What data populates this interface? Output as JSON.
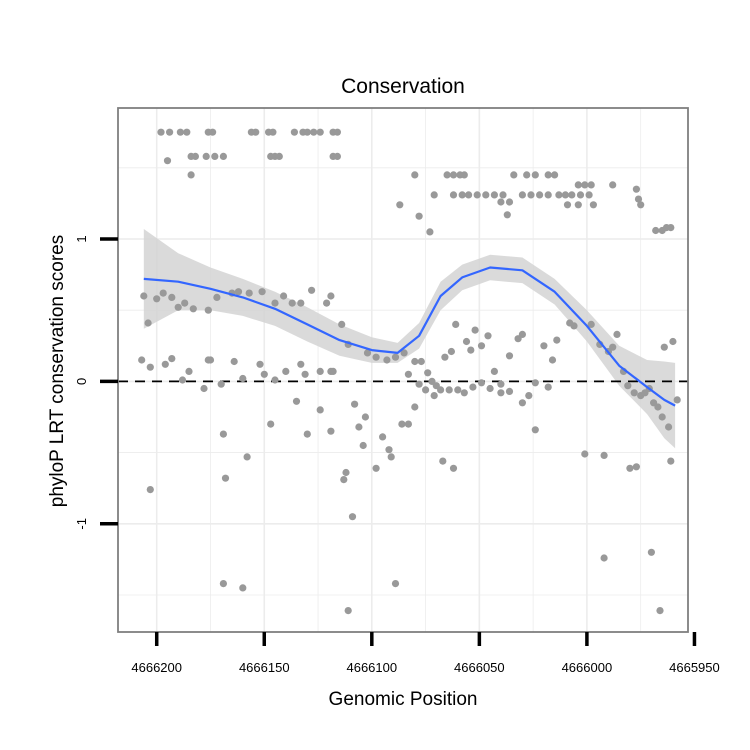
{
  "chart_data": {
    "type": "scatter",
    "title": "Conservation",
    "xlabel": "Genomic Position",
    "ylabel": "phyloP LRT conservation scores",
    "xlim": [
      4666218,
      4665953
    ],
    "ylim": [
      -1.76,
      1.92
    ],
    "x_ticks": [
      {
        "value": 4666200,
        "label": "4666200"
      },
      {
        "value": 4666150,
        "label": "4666150"
      },
      {
        "value": 4666100,
        "label": "4666100"
      },
      {
        "value": 4666050,
        "label": "4666050"
      },
      {
        "value": 4666000,
        "label": "4666000"
      },
      {
        "value": 4665950,
        "label": "4665950"
      }
    ],
    "y_ticks": [
      {
        "value": -1,
        "label": "-1"
      },
      {
        "value": 0,
        "label": "0"
      },
      {
        "value": 1,
        "label": "1"
      }
    ],
    "reference_line": {
      "y": 0,
      "style": "dashed"
    },
    "grid": true,
    "colors": {
      "points": "#999999",
      "smooth": "#3366ff",
      "band": "#d3d3d3",
      "grid": "#ececec",
      "border": "#7f7f7f"
    },
    "smooth": {
      "x": [
        4666206,
        4666190,
        4666175,
        4666160,
        4666145,
        4666130,
        4666115,
        4666100,
        4666088,
        4666078,
        4666068,
        4666058,
        4666045,
        4666030,
        4666015,
        4666000,
        4665985,
        4665972,
        4665964,
        4665959
      ],
      "y": [
        0.72,
        0.7,
        0.65,
        0.59,
        0.51,
        0.4,
        0.29,
        0.22,
        0.2,
        0.32,
        0.6,
        0.73,
        0.8,
        0.78,
        0.63,
        0.39,
        0.11,
        -0.04,
        -0.13,
        -0.17
      ],
      "lower": [
        0.37,
        0.5,
        0.5,
        0.46,
        0.39,
        0.28,
        0.18,
        0.13,
        0.13,
        0.23,
        0.5,
        0.64,
        0.71,
        0.69,
        0.54,
        0.28,
        -0.03,
        -0.23,
        -0.4,
        -0.47
      ],
      "upper": [
        1.07,
        0.9,
        0.8,
        0.72,
        0.63,
        0.52,
        0.4,
        0.31,
        0.27,
        0.41,
        0.7,
        0.82,
        0.89,
        0.87,
        0.72,
        0.5,
        0.25,
        0.15,
        0.14,
        0.13
      ]
    },
    "points": [
      [
        4666198,
        1.75
      ],
      [
        4666194,
        1.75
      ],
      [
        4666189,
        1.75
      ],
      [
        4666186,
        1.75
      ],
      [
        4666176,
        1.75
      ],
      [
        4666174,
        1.75
      ],
      [
        4666156,
        1.75
      ],
      [
        4666154,
        1.75
      ],
      [
        4666148,
        1.75
      ],
      [
        4666146,
        1.75
      ],
      [
        4666136,
        1.75
      ],
      [
        4666132,
        1.75
      ],
      [
        4666130,
        1.75
      ],
      [
        4666127,
        1.75
      ],
      [
        4666124,
        1.75
      ],
      [
        4666118,
        1.75
      ],
      [
        4666116,
        1.75
      ],
      [
        4666195,
        1.55
      ],
      [
        4666184,
        1.58
      ],
      [
        4666182,
        1.58
      ],
      [
        4666177,
        1.58
      ],
      [
        4666173,
        1.58
      ],
      [
        4666169,
        1.58
      ],
      [
        4666147,
        1.58
      ],
      [
        4666145,
        1.58
      ],
      [
        4666143,
        1.58
      ],
      [
        4666118,
        1.58
      ],
      [
        4666116,
        1.58
      ],
      [
        4666184,
        1.45
      ],
      [
        4666080,
        1.45
      ],
      [
        4666065,
        1.45
      ],
      [
        4666062,
        1.45
      ],
      [
        4666059,
        1.45
      ],
      [
        4666057,
        1.45
      ],
      [
        4666034,
        1.45
      ],
      [
        4666028,
        1.45
      ],
      [
        4666024,
        1.45
      ],
      [
        4666018,
        1.45
      ],
      [
        4666015,
        1.45
      ],
      [
        4666004,
        1.38
      ],
      [
        4666001,
        1.38
      ],
      [
        4665998,
        1.38
      ],
      [
        4665988,
        1.38
      ],
      [
        4665977,
        1.35
      ],
      [
        4666071,
        1.31
      ],
      [
        4666062,
        1.31
      ],
      [
        4666058,
        1.31
      ],
      [
        4666055,
        1.31
      ],
      [
        4666051,
        1.31
      ],
      [
        4666047,
        1.31
      ],
      [
        4666043,
        1.31
      ],
      [
        4666039,
        1.31
      ],
      [
        4666030,
        1.31
      ],
      [
        4666026,
        1.31
      ],
      [
        4666022,
        1.31
      ],
      [
        4666018,
        1.31
      ],
      [
        4666013,
        1.31
      ],
      [
        4666010,
        1.31
      ],
      [
        4666007,
        1.31
      ],
      [
        4666003,
        1.31
      ],
      [
        4665999,
        1.31
      ],
      [
        4665976,
        1.28
      ],
      [
        4666040,
        1.26
      ],
      [
        4666036,
        1.26
      ],
      [
        4666009,
        1.24
      ],
      [
        4666004,
        1.24
      ],
      [
        4665997,
        1.24
      ],
      [
        4665975,
        1.24
      ],
      [
        4666037,
        1.17
      ],
      [
        4666087,
        1.24
      ],
      [
        4666078,
        1.16
      ],
      [
        4666073,
        1.05
      ],
      [
        4665968,
        1.06
      ],
      [
        4665965,
        1.06
      ],
      [
        4665963,
        1.08
      ],
      [
        4665961,
        1.08
      ],
      [
        4666206,
        0.6
      ],
      [
        4666204,
        0.41
      ],
      [
        4666200,
        0.58
      ],
      [
        4666197,
        0.62
      ],
      [
        4666193,
        0.59
      ],
      [
        4666190,
        0.52
      ],
      [
        4666187,
        0.55
      ],
      [
        4666183,
        0.51
      ],
      [
        4666176,
        0.5
      ],
      [
        4666172,
        0.59
      ],
      [
        4666165,
        0.62
      ],
      [
        4666162,
        0.63
      ],
      [
        4666157,
        0.62
      ],
      [
        4666151,
        0.63
      ],
      [
        4666145,
        0.55
      ],
      [
        4666141,
        0.6
      ],
      [
        4666137,
        0.55
      ],
      [
        4666133,
        0.55
      ],
      [
        4666128,
        0.64
      ],
      [
        4666121,
        0.55
      ],
      [
        4666119,
        0.6
      ],
      [
        4666114,
        0.4
      ],
      [
        4666111,
        0.26
      ],
      [
        4666207,
        0.15
      ],
      [
        4666203,
        0.1
      ],
      [
        4666196,
        0.12
      ],
      [
        4666193,
        0.16
      ],
      [
        4666188,
        0.01
      ],
      [
        4666185,
        0.07
      ],
      [
        4666176,
        0.15
      ],
      [
        4666175,
        0.15
      ],
      [
        4666170,
        -0.02
      ],
      [
        4666164,
        0.14
      ],
      [
        4666160,
        0.02
      ],
      [
        4666152,
        0.12
      ],
      [
        4666150,
        0.05
      ],
      [
        4666145,
        0.01
      ],
      [
        4666140,
        0.07
      ],
      [
        4666133,
        0.12
      ],
      [
        4666131,
        0.05
      ],
      [
        4666124,
        0.07
      ],
      [
        4666119,
        0.07
      ],
      [
        4666118,
        0.07
      ],
      [
        4666203,
        -0.76
      ],
      [
        4666178,
        -0.05
      ],
      [
        4666169,
        -0.37
      ],
      [
        4666168,
        -0.68
      ],
      [
        4666158,
        -0.53
      ],
      [
        4666147,
        -0.3
      ],
      [
        4666135,
        -0.14
      ],
      [
        4666130,
        -0.37
      ],
      [
        4666124,
        -0.2
      ],
      [
        4666119,
        -0.35
      ],
      [
        4666113,
        -0.69
      ],
      [
        4666112,
        -0.64
      ],
      [
        4666104,
        -0.45
      ],
      [
        4666098,
        -0.61
      ],
      [
        4666108,
        -0.16
      ],
      [
        4666109,
        -0.95
      ],
      [
        4666103,
        -0.25
      ],
      [
        4666106,
        -0.32
      ],
      [
        4666095,
        -0.39
      ],
      [
        4666092,
        -0.48
      ],
      [
        4666091,
        -0.53
      ],
      [
        4666086,
        -0.3
      ],
      [
        4666083,
        -0.3
      ],
      [
        4666080,
        -0.18
      ],
      [
        4666169,
        -1.42
      ],
      [
        4666160,
        -1.45
      ],
      [
        4666111,
        -1.61
      ],
      [
        4666089,
        -1.42
      ],
      [
        4665992,
        -1.24
      ],
      [
        4665970,
        -1.2
      ],
      [
        4665966,
        -1.61
      ],
      [
        4666102,
        0.2
      ],
      [
        4666098,
        0.17
      ],
      [
        4666093,
        0.15
      ],
      [
        4666089,
        0.17
      ],
      [
        4666085,
        0.2
      ],
      [
        4666083,
        0.05
      ],
      [
        4666080,
        0.14
      ],
      [
        4666077,
        0.14
      ],
      [
        4666074,
        0.06
      ],
      [
        4666072,
        0.0
      ],
      [
        4666070,
        -0.03
      ],
      [
        4666066,
        0.17
      ],
      [
        4666063,
        0.21
      ],
      [
        4666061,
        0.4
      ],
      [
        4666056,
        0.28
      ],
      [
        4666054,
        0.22
      ],
      [
        4666052,
        0.36
      ],
      [
        4666049,
        0.25
      ],
      [
        4666046,
        0.32
      ],
      [
        4666043,
        0.07
      ],
      [
        4666040,
        -0.02
      ],
      [
        4666036,
        0.18
      ],
      [
        4666032,
        0.3
      ],
      [
        4666030,
        0.33
      ],
      [
        4666027,
        -0.1
      ],
      [
        4666024,
        -0.34
      ],
      [
        4666020,
        0.25
      ],
      [
        4666016,
        0.15
      ],
      [
        4666078,
        -0.02
      ],
      [
        4666075,
        -0.06
      ],
      [
        4666071,
        -0.1
      ],
      [
        4666068,
        -0.06
      ],
      [
        4666064,
        -0.06
      ],
      [
        4666060,
        -0.06
      ],
      [
        4666057,
        -0.08
      ],
      [
        4666053,
        -0.04
      ],
      [
        4666049,
        -0.01
      ],
      [
        4666045,
        -0.05
      ],
      [
        4666040,
        -0.08
      ],
      [
        4666036,
        -0.07
      ],
      [
        4666030,
        -0.15
      ],
      [
        4666024,
        -0.01
      ],
      [
        4666018,
        -0.04
      ],
      [
        4666014,
        0.29
      ],
      [
        4666008,
        0.41
      ],
      [
        4666006,
        0.39
      ],
      [
        4665998,
        0.4
      ],
      [
        4665994,
        0.26
      ],
      [
        4665990,
        0.21
      ],
      [
        4665988,
        0.24
      ],
      [
        4665986,
        0.33
      ],
      [
        4665983,
        0.07
      ],
      [
        4665981,
        -0.03
      ],
      [
        4665978,
        -0.08
      ],
      [
        4665975,
        -0.1
      ],
      [
        4665973,
        -0.08
      ],
      [
        4665971,
        -0.05
      ],
      [
        4665969,
        -0.15
      ],
      [
        4665967,
        -0.18
      ],
      [
        4665964,
        0.24
      ],
      [
        4665960,
        0.28
      ],
      [
        4665958,
        -0.13
      ],
      [
        4665962,
        -0.32
      ],
      [
        4665965,
        -0.25
      ],
      [
        4666001,
        -0.51
      ],
      [
        4665992,
        -0.52
      ],
      [
        4665980,
        -0.61
      ],
      [
        4665977,
        -0.6
      ],
      [
        4665961,
        -0.56
      ],
      [
        4666062,
        -0.61
      ],
      [
        4666067,
        -0.56
      ]
    ]
  }
}
